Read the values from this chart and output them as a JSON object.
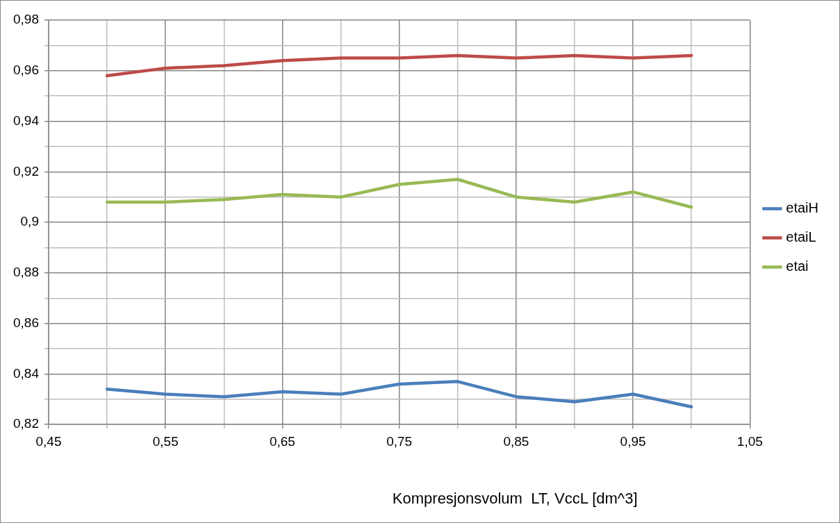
{
  "chart_data": {
    "type": "line",
    "xlabel": "Kompresjonsvolum  LT, VccL [dm^3]",
    "x": [
      0.5,
      0.55,
      0.6,
      0.65,
      0.7,
      0.75,
      0.8,
      0.85,
      0.9,
      0.95,
      1.0
    ],
    "series": [
      {
        "name": "etaiH",
        "color": "#4a7ebb",
        "values": [
          0.834,
          0.832,
          0.831,
          0.833,
          0.832,
          0.836,
          0.837,
          0.831,
          0.829,
          0.832,
          0.827
        ]
      },
      {
        "name": "etaiL",
        "color": "#be4b48",
        "values": [
          0.958,
          0.961,
          0.962,
          0.964,
          0.965,
          0.965,
          0.966,
          0.965,
          0.966,
          0.965,
          0.966
        ]
      },
      {
        "name": "etai",
        "color": "#98b954",
        "values": [
          0.908,
          0.908,
          0.909,
          0.911,
          0.91,
          0.915,
          0.917,
          0.91,
          0.908,
          0.912,
          0.906
        ]
      }
    ],
    "xlim": [
      0.45,
      1.05
    ],
    "xticks": [
      {
        "value": 0.45,
        "label": "0,45"
      },
      {
        "value": 0.5,
        "label": null
      },
      {
        "value": 0.55,
        "label": "0,55"
      },
      {
        "value": 0.6,
        "label": null
      },
      {
        "value": 0.65,
        "label": "0,65"
      },
      {
        "value": 0.7,
        "label": null
      },
      {
        "value": 0.75,
        "label": "0,75"
      },
      {
        "value": 0.8,
        "label": null
      },
      {
        "value": 0.85,
        "label": "0,85"
      },
      {
        "value": 0.9,
        "label": null
      },
      {
        "value": 0.95,
        "label": "0,95"
      },
      {
        "value": 1.0,
        "label": null
      },
      {
        "value": 1.05,
        "label": "1,05"
      }
    ],
    "ylim": [
      0.82,
      0.98
    ],
    "yticks": [
      {
        "value": 0.82,
        "label": "0,82"
      },
      {
        "value": 0.83,
        "label": null
      },
      {
        "value": 0.84,
        "label": "0,84"
      },
      {
        "value": 0.85,
        "label": null
      },
      {
        "value": 0.86,
        "label": "0,86"
      },
      {
        "value": 0.87,
        "label": null
      },
      {
        "value": 0.88,
        "label": "0,88"
      },
      {
        "value": 0.89,
        "label": null
      },
      {
        "value": 0.9,
        "label": "0,9"
      },
      {
        "value": 0.91,
        "label": null
      },
      {
        "value": 0.92,
        "label": "0,92"
      },
      {
        "value": 0.93,
        "label": null
      },
      {
        "value": 0.94,
        "label": "0,94"
      },
      {
        "value": 0.95,
        "label": null
      },
      {
        "value": 0.96,
        "label": "0,96"
      },
      {
        "value": 0.97,
        "label": null
      },
      {
        "value": 0.98,
        "label": "0,98"
      }
    ],
    "grid": true,
    "legend": "right",
    "marker": "none",
    "line_style": "solid"
  }
}
